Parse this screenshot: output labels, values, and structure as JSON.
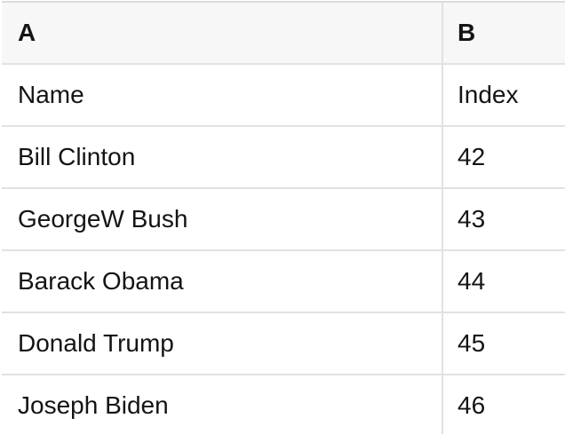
{
  "table": {
    "column_headers": [
      {
        "label": "A"
      },
      {
        "label": "B"
      }
    ],
    "rows": [
      {
        "a": "Name",
        "b": "Index"
      },
      {
        "a": "Bill Clinton",
        "b": 42
      },
      {
        "a": "GeorgeW Bush",
        "b": 43
      },
      {
        "a": "Barack Obama",
        "b": 44
      },
      {
        "a": "Donald Trump",
        "b": 45
      },
      {
        "a": "Joseph Biden",
        "b": 46
      }
    ]
  },
  "colors": {
    "header_background": "#f7f7f7",
    "body_background": "#ffffff",
    "border": "#e2e2e2",
    "top_border": "#dcdcdc",
    "text": "#141414"
  }
}
